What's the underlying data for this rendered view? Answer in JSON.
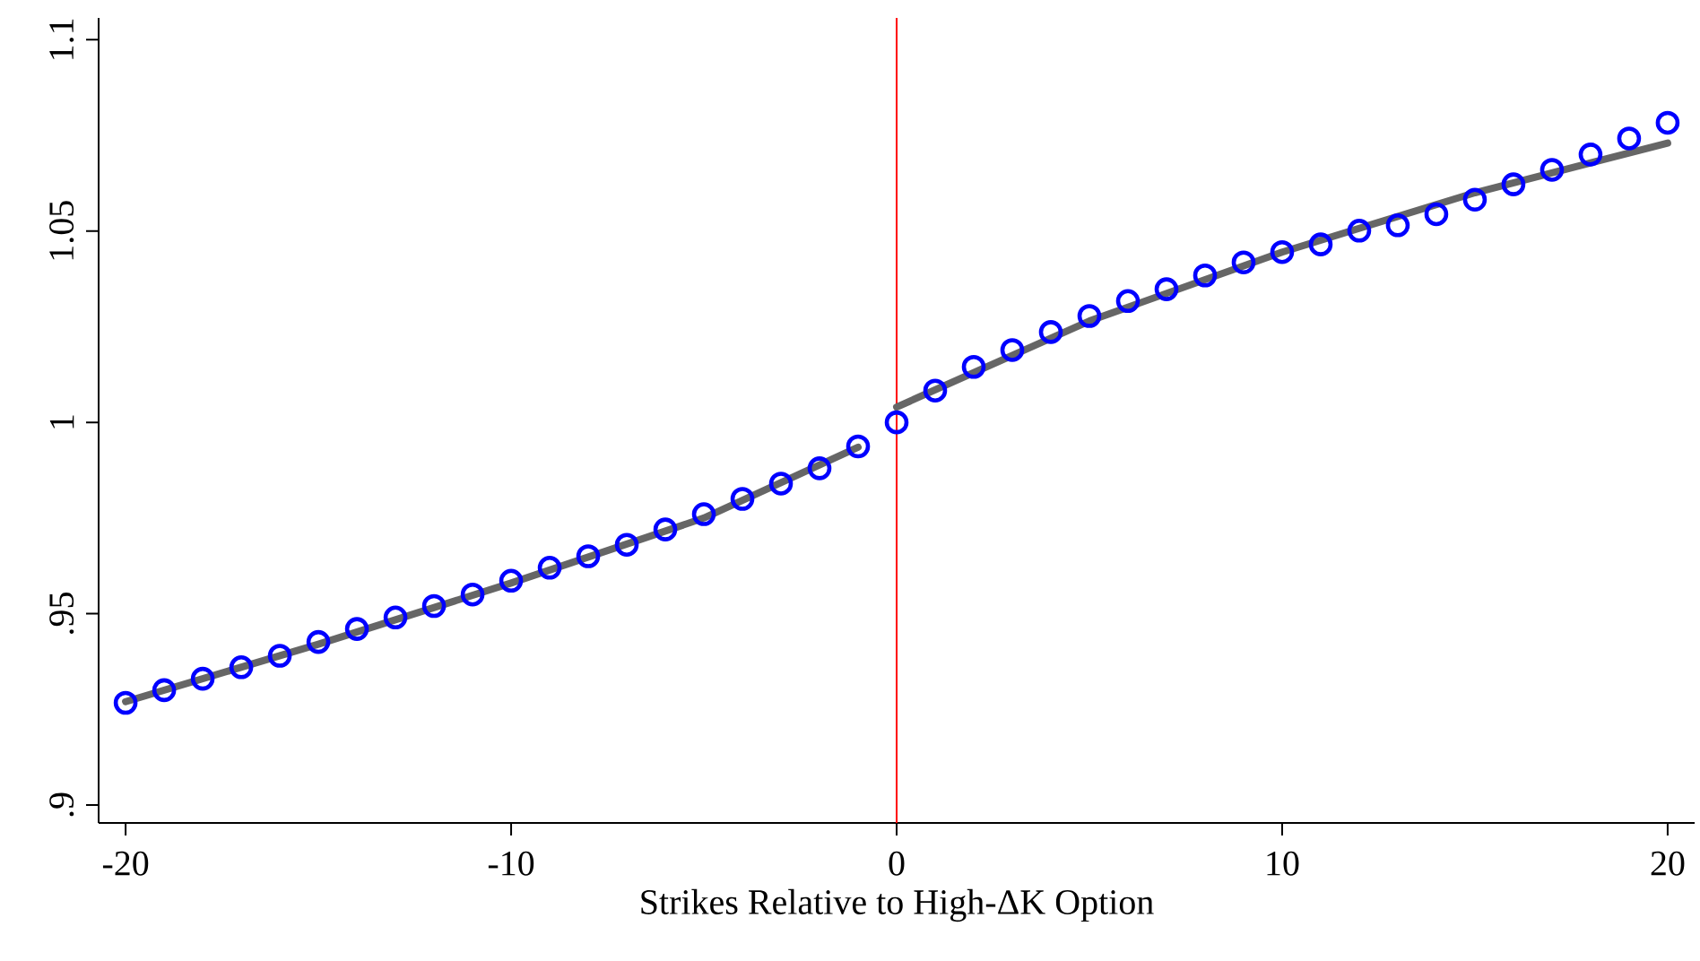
{
  "chart_data": {
    "type": "scatter",
    "xlabel": "Strikes Relative to High-ΔK Option",
    "xlim": [
      -20.7,
      20.7
    ],
    "ylim": [
      0.8953,
      1.1057
    ],
    "xticks": [
      -20,
      -10,
      0,
      10,
      20
    ],
    "yticks": [
      {
        "value": 0.9,
        "label": ".9"
      },
      {
        "value": 0.95,
        "label": ".95"
      },
      {
        "value": 1,
        "label": "1"
      },
      {
        "value": 1.05,
        "label": "1.05"
      },
      {
        "value": 1.1,
        "label": "1.1"
      }
    ],
    "x": [
      -20,
      -19,
      -18,
      -17,
      -16,
      -15,
      -14,
      -13,
      -12,
      -11,
      -10,
      -9,
      -8,
      -7,
      -6,
      -5,
      -4,
      -3,
      -2,
      -1,
      0,
      1,
      2,
      3,
      4,
      5,
      6,
      7,
      8,
      9,
      10,
      11,
      12,
      13,
      14,
      15,
      16,
      17,
      18,
      19,
      20
    ],
    "series": [
      {
        "type": "line",
        "color": "#666666",
        "marker": "none",
        "x": [
          -20,
          -15,
          -10,
          -5,
          -1,
          -0.5,
          0,
          5,
          10,
          15,
          20
        ],
        "values": [
          0.927,
          0.942,
          0.958,
          0.975,
          0.9935,
          null,
          1.004,
          1.0265,
          1.0445,
          1.06,
          1.073
        ]
      },
      {
        "color": "#0000ff",
        "marker": "circle",
        "values": [
          0.9267,
          0.93,
          0.933,
          0.936,
          0.939,
          0.9426,
          0.946,
          0.949,
          0.952,
          0.955,
          0.9586,
          0.962,
          0.965,
          0.968,
          0.972,
          0.976,
          0.98,
          0.984,
          0.988,
          0.9937,
          1.0,
          1.0083,
          1.0145,
          1.0189,
          1.0236,
          1.0278,
          1.0317,
          1.0348,
          1.0384,
          1.0418,
          1.0445,
          1.0465,
          1.0501,
          1.0515,
          1.0544,
          1.0582,
          1.0622,
          1.066,
          1.07,
          1.0742,
          1.0783
        ]
      }
    ],
    "ref_lines": [
      {
        "axis": "x",
        "value": 0,
        "color": "#ff0000"
      }
    ]
  }
}
